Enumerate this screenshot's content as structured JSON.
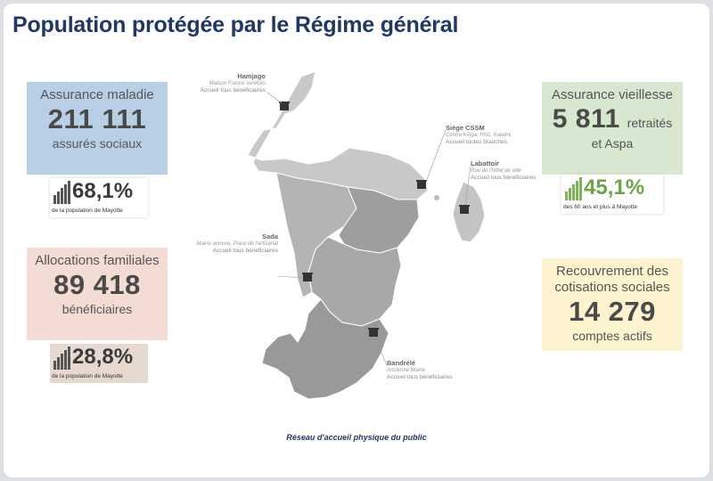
{
  "title": "Population protégée par le Régime général",
  "cards": {
    "maladie": {
      "label": "Assurance maladie",
      "value": "211 111",
      "sub": "assurés sociaux"
    },
    "famille": {
      "label": "Allocations familiales",
      "value": "89 418",
      "sub": "bénéficiaires"
    },
    "vieillesse": {
      "label": "Assurance vieillesse",
      "value": "5 811",
      "value_suffix": "retraités",
      "sub": "et Aspa"
    },
    "recouvrement": {
      "label": "Recouvrement des cotisations sociales",
      "value": "14 279",
      "sub": "comptes actifs"
    }
  },
  "stats": {
    "maladie": {
      "percent": "68,1%",
      "caption": "de la population de Mayotte",
      "icon": "bar-chart-icon"
    },
    "famille": {
      "percent": "28,8%",
      "caption": "de la population de Mayotte",
      "icon": "bar-chart-icon"
    },
    "vieillesse": {
      "percent": "45,1%",
      "caption": "des 60 ans et plus à Mayotte",
      "icon": "bar-chart-icon"
    }
  },
  "locations": {
    "hamjago": {
      "name": "Hamjago",
      "address": "Maison France services",
      "service": "Accueil tous bénéficiaires"
    },
    "siege": {
      "name": "Siège CSSM",
      "address": "Centre Kinga, RN1, Kawéni",
      "service": "Accueil toutes branches"
    },
    "labattoir": {
      "name": "Labattoir",
      "address": "Rue de l'hôtel de ville",
      "service": "Accueil tous bénéficiaires"
    },
    "sada": {
      "name": "Sada",
      "address": "Mairie annexe, Place de l'artisanat",
      "service": "Accueil tous bénéficiaires"
    },
    "bandrele": {
      "name": "Bandrélé",
      "address": "Ancienne Mairie",
      "service": "Accueil tous bénéficiaires"
    }
  },
  "footer": "Réseau d'accueil physique du public",
  "colors": {
    "title": "#1f3864",
    "maladie": "#b9cfe6",
    "famille": "#f3dcd3",
    "vieillesse": "#d8e7cf",
    "recouvrement": "#fdf3cf",
    "accent_green": "#70a34a"
  }
}
